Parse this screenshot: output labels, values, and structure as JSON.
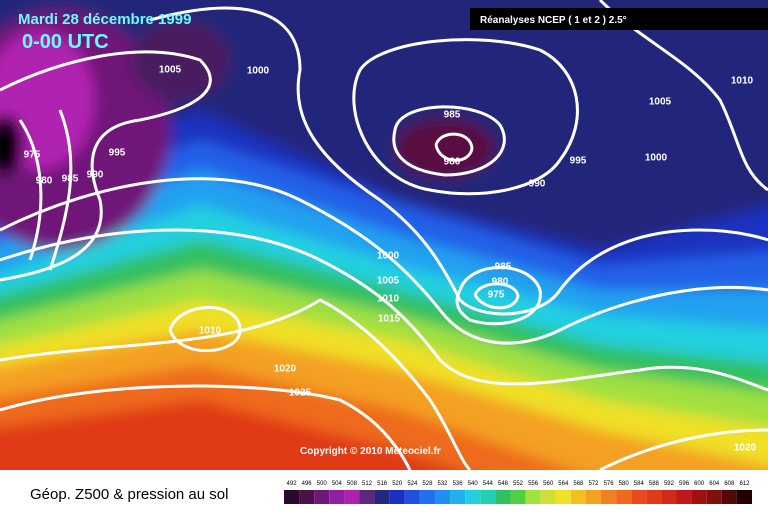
{
  "header": {
    "title": "Mardi 28 décembre 1999",
    "time": "0-00 UTC",
    "source": "Réanalyses NCEP ( 1 et 2 ) 2.5°"
  },
  "isobar_labels": [
    1005,
    1000,
    1010,
    1005,
    985,
    975,
    995,
    980,
    995,
    1000,
    980,
    985,
    990,
    990,
    1000,
    985,
    980,
    1005,
    975,
    1010,
    1015,
    1010,
    1020,
    1025,
    1020
  ],
  "copyright": "Copyright © 2010 Meteociel.fr",
  "footer": {
    "caption": "Géop. Z500 & pression au sol",
    "colorbar_labels": [
      492,
      496,
      500,
      504,
      508,
      512,
      516,
      520,
      524,
      528,
      532,
      536,
      540,
      544,
      548,
      552,
      556,
      560,
      564,
      568,
      572,
      576,
      580,
      584,
      588,
      592,
      596,
      600,
      604,
      608,
      612
    ]
  }
}
